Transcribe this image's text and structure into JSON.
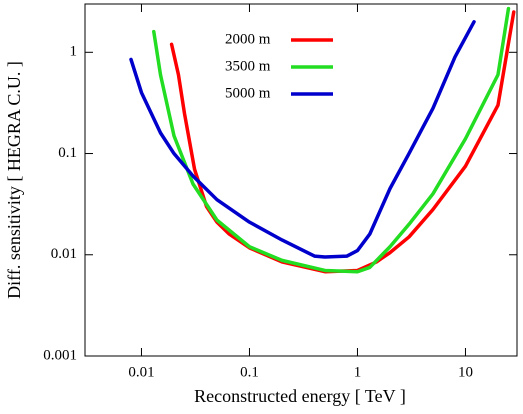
{
  "chart_data": {
    "type": "line",
    "x_label": "Reconstructed energy [ TeV ]",
    "y_label": "Diff. sensitivity [ HEGRA C.U. ]",
    "xscale": "log",
    "yscale": "log",
    "xlim": [
      0.003,
      30
    ],
    "ylim": [
      0.001,
      3
    ],
    "xticks": [
      0.01,
      0.1,
      1,
      10
    ],
    "yticks": [
      0.001,
      0.01,
      0.1,
      1
    ],
    "legend": "upper center",
    "series": [
      {
        "name": "2000 m",
        "color": "#ff0000",
        "x": [
          0.019,
          0.022,
          0.025,
          0.031,
          0.04,
          0.05,
          0.065,
          0.1,
          0.2,
          0.5,
          1,
          1.5,
          2,
          3,
          5,
          10,
          20,
          28
        ],
        "values": [
          1.2,
          0.6,
          0.25,
          0.07,
          0.03,
          0.021,
          0.016,
          0.0117,
          0.0085,
          0.0068,
          0.007,
          0.0085,
          0.0105,
          0.015,
          0.028,
          0.075,
          0.3,
          2.5
        ]
      },
      {
        "name": "3500 m",
        "color": "#22dd22",
        "x": [
          0.013,
          0.015,
          0.02,
          0.03,
          0.05,
          0.1,
          0.2,
          0.5,
          1,
          1.3,
          2,
          3,
          5,
          10,
          20,
          25
        ],
        "values": [
          1.6,
          0.6,
          0.15,
          0.05,
          0.022,
          0.012,
          0.0088,
          0.007,
          0.0068,
          0.0075,
          0.012,
          0.02,
          0.04,
          0.14,
          0.6,
          2.7
        ]
      },
      {
        "name": "5000 m",
        "color": "#0000cc",
        "x": [
          0.008,
          0.01,
          0.015,
          0.02,
          0.03,
          0.05,
          0.1,
          0.2,
          0.4,
          0.5,
          0.8,
          1,
          1.3,
          2,
          3,
          5,
          8,
          12
        ],
        "values": [
          0.85,
          0.4,
          0.16,
          0.1,
          0.06,
          0.035,
          0.021,
          0.014,
          0.0097,
          0.0095,
          0.0097,
          0.011,
          0.016,
          0.045,
          0.1,
          0.28,
          0.9,
          2.0
        ]
      }
    ]
  }
}
